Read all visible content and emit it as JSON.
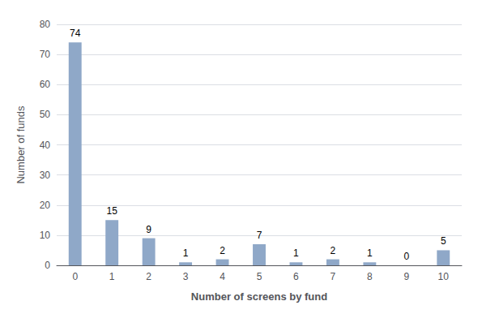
{
  "chart_data": {
    "type": "bar",
    "categories": [
      0,
      1,
      2,
      3,
      4,
      5,
      6,
      7,
      8,
      9,
      10
    ],
    "values": [
      74,
      15,
      9,
      1,
      2,
      7,
      1,
      2,
      1,
      0,
      5
    ],
    "color": "#8fa8c8",
    "xlabel": "Number of screens by fund",
    "ylabel": "Number of funds",
    "ylim": [
      0,
      80
    ],
    "yticks": [
      0,
      10,
      20,
      30,
      40,
      50,
      60,
      70,
      80
    ],
    "grid": true,
    "data_labels": true
  }
}
